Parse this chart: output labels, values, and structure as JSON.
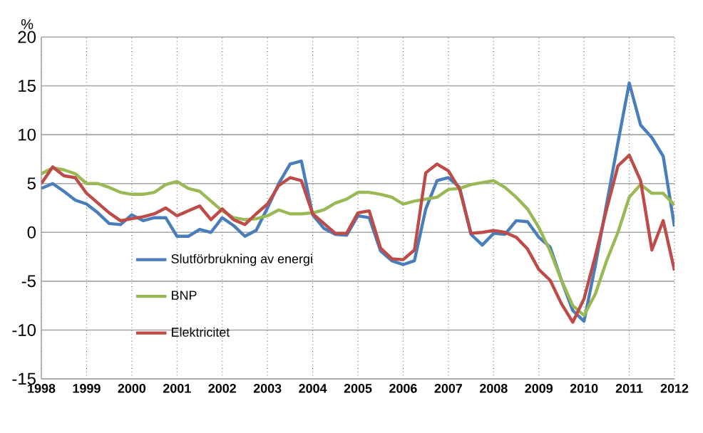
{
  "chart_data": {
    "type": "line",
    "ylabel": "%",
    "xlim": [
      1998,
      2012
    ],
    "ylim": [
      -15,
      20
    ],
    "xticks": [
      1998,
      1999,
      2000,
      2001,
      2002,
      2003,
      2004,
      2005,
      2006,
      2007,
      2008,
      2009,
      2010,
      2011,
      2012
    ],
    "yticks": [
      -15,
      -10,
      -5,
      0,
      5,
      10,
      15,
      20
    ],
    "grid": true,
    "legend": "bottom left",
    "marker": "none",
    "line_style": "solid",
    "x": [
      1998,
      1998.25,
      1998.5,
      1998.75,
      1999,
      1999.25,
      1999.5,
      1999.75,
      2000,
      2000.25,
      2000.5,
      2000.75,
      2001,
      2001.25,
      2001.5,
      2001.75,
      2002,
      2002.25,
      2002.5,
      2002.75,
      2003,
      2003.25,
      2003.5,
      2003.75,
      2004,
      2004.25,
      2004.5,
      2004.75,
      2005,
      2005.25,
      2005.5,
      2005.75,
      2006,
      2006.25,
      2006.5,
      2006.75,
      2007,
      2007.25,
      2007.5,
      2007.75,
      2008,
      2008.25,
      2008.5,
      2008.75,
      2009,
      2009.25,
      2009.5,
      2009.75,
      2010,
      2010.25,
      2010.5,
      2010.75,
      2011,
      2011.25,
      2011.5,
      2011.75,
      2012
    ],
    "series": [
      {
        "name": "Slutförbrukning av energi",
        "color": "#4a7ebb",
        "values": [
          4.5,
          5,
          4.2,
          3.3,
          2.9,
          2,
          0.9,
          0.8,
          1.8,
          1.2,
          1.5,
          1.5,
          -0.4,
          -0.4,
          0.3,
          0,
          1.5,
          0.7,
          -0.4,
          0.2,
          2.5,
          5,
          7,
          7.3,
          1.8,
          0.4,
          -0.2,
          -0.3,
          1.7,
          1.5,
          -1.9,
          -2.9,
          -3.3,
          -2.9,
          2.4,
          5.3,
          5.6,
          4.6,
          -0.2,
          -1.3,
          -0.1,
          -0.2,
          1.2,
          1.1,
          -0.5,
          -1.5,
          -4.9,
          -8,
          -9.1,
          -3.4,
          2.9,
          9.2,
          15.3,
          11,
          9.7,
          7.8,
          0.6
        ]
      },
      {
        "name": "BNP",
        "color": "#98b954",
        "values": [
          6,
          6.6,
          6.4,
          6,
          5,
          5,
          4.6,
          4.1,
          3.9,
          3.9,
          4.1,
          4.9,
          5.2,
          4.5,
          4.2,
          3.2,
          2.2,
          1.5,
          1.3,
          1.4,
          1.7,
          2.3,
          1.9,
          1.9,
          2,
          2.3,
          3,
          3.4,
          4.1,
          4.1,
          3.9,
          3.6,
          2.9,
          3.2,
          3.4,
          3.6,
          4.4,
          4.5,
          4.9,
          5.1,
          5.3,
          4.6,
          3.6,
          2.4,
          0.5,
          -1.9,
          -4.9,
          -7.5,
          -8.5,
          -6.3,
          -2.9,
          0,
          3.6,
          4.9,
          4,
          4,
          2.8
        ]
      },
      {
        "name": "Elektricitet",
        "color": "#be4b48",
        "values": [
          5,
          6.7,
          5.8,
          5.6,
          4,
          3,
          2,
          1.2,
          1.4,
          1.6,
          1.9,
          2.5,
          1.7,
          2.2,
          2.7,
          1.3,
          2.4,
          1.3,
          0.8,
          1.9,
          2.9,
          4.8,
          5.6,
          5.3,
          1.9,
          0.9,
          -0.1,
          -0.1,
          2,
          2.2,
          -1.6,
          -2.7,
          -2.8,
          -1.8,
          6.1,
          7,
          6.3,
          4.4,
          -0.1,
          0,
          0.2,
          0,
          -0.5,
          -1.7,
          -3.8,
          -4.9,
          -7.3,
          -9.2,
          -6.8,
          -2.4,
          2.4,
          6.8,
          7.9,
          5.3,
          -1.8,
          1.2,
          -3.9
        ]
      }
    ]
  }
}
